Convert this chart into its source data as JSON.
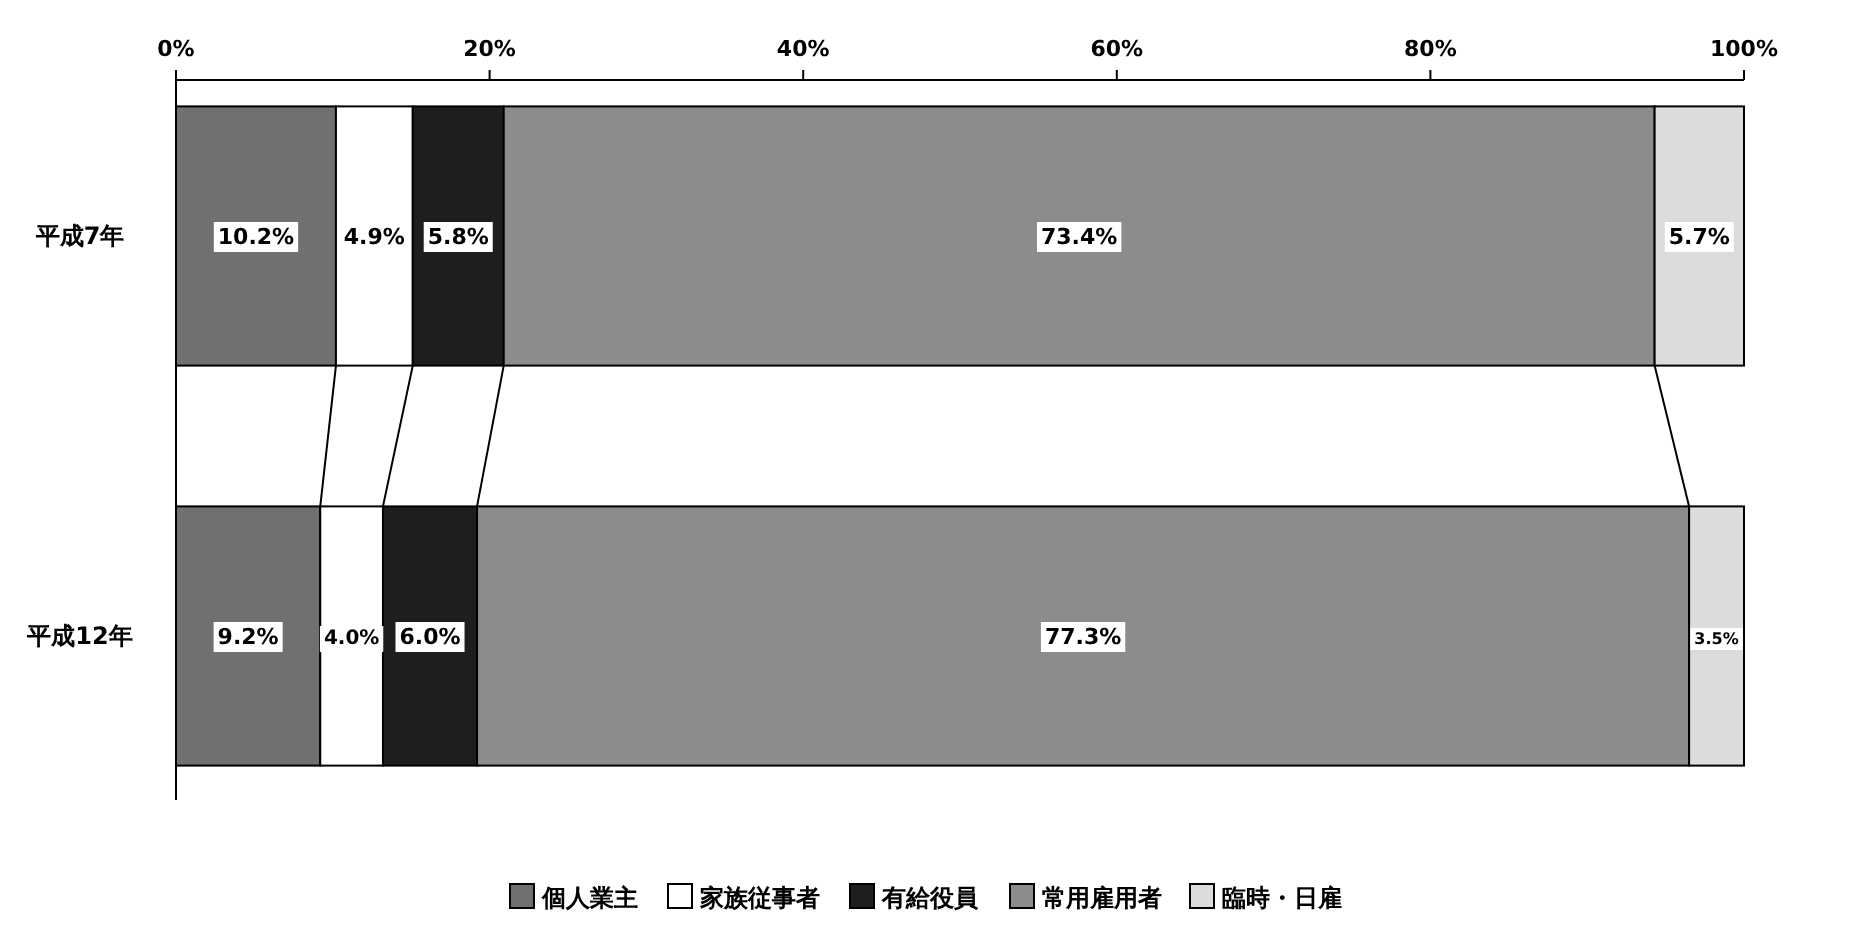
{
  "chart_data": {
    "type": "bar",
    "orientation": "horizontal",
    "stacked": true,
    "categories": [
      "平成7年",
      "平成12年"
    ],
    "series": [
      {
        "name": "個人業主",
        "color": "#707070",
        "values": [
          10.2,
          9.2
        ],
        "value_labels": [
          "10.2%",
          "9.2%"
        ]
      },
      {
        "name": "家族従事者",
        "color": "#ffffff",
        "values": [
          4.9,
          4.0
        ],
        "value_labels": [
          "4.9%",
          "4.0%"
        ]
      },
      {
        "name": "有給役員",
        "color": "#1e1e1e",
        "values": [
          5.8,
          6.0
        ],
        "value_labels": [
          "5.8%",
          "6.0%"
        ]
      },
      {
        "name": "常用雇用者",
        "color": "#8c8c8c",
        "values": [
          73.4,
          77.3
        ],
        "value_labels": [
          "73.4%",
          "77.3%"
        ]
      },
      {
        "name": "臨時・日雇",
        "color": "#dcdcdc",
        "values": [
          5.7,
          3.5
        ],
        "value_labels": [
          "5.7%",
          "3.5%"
        ]
      }
    ],
    "xlim": [
      0,
      100
    ],
    "xticks": [
      {
        "value": 0,
        "label": "0%"
      },
      {
        "value": 20,
        "label": "20%"
      },
      {
        "value": 40,
        "label": "40%"
      },
      {
        "value": 60,
        "label": "60%"
      },
      {
        "value": 80,
        "label": "80%"
      },
      {
        "value": 100,
        "label": "100%"
      }
    ],
    "legend": "bottom"
  }
}
